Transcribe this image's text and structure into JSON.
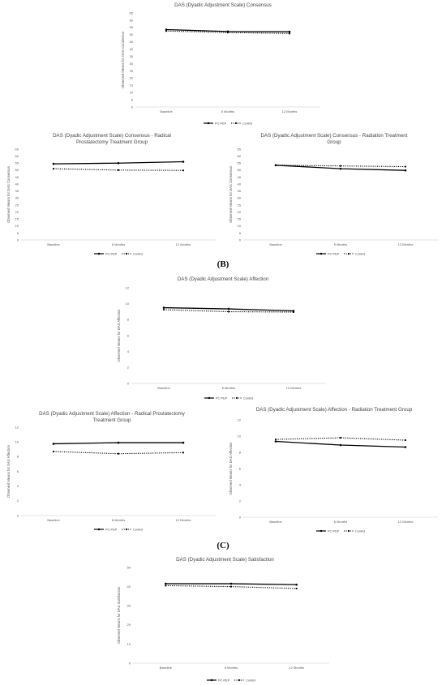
{
  "section_labels": [
    "(B)",
    "(C)"
  ],
  "legend": {
    "series": [
      "PC-PEP",
      "Control"
    ]
  },
  "chart_data": [
    {
      "type": "line",
      "title": "DAS (Dyadic Adjustment Scale) Consensus",
      "ylabel": "Observed Means for DAS Consensus",
      "xlabel": "",
      "categories": [
        "Baseline",
        "6 Months",
        "12 Months"
      ],
      "ylim": [
        0,
        65
      ],
      "yticks": [
        0,
        5,
        10,
        15,
        20,
        25,
        30,
        35,
        40,
        45,
        50,
        55,
        60,
        65
      ],
      "grid": false,
      "legend_position": "bottom",
      "series": [
        {
          "name": "PC-PEP",
          "style": "solid",
          "values": [
            53.5,
            52.2,
            52.0
          ]
        },
        {
          "name": "Control",
          "style": "dotted",
          "values": [
            52.5,
            51.5,
            50.8
          ]
        }
      ]
    },
    {
      "type": "line",
      "title": "DAS (Dyadic Adjustment Scale) Consensus - Radical Prostatectomy Treatment Group",
      "ylabel": "Observed Means for DAS Consensus",
      "xlabel": "",
      "categories": [
        "Baseline",
        "6 Months",
        "12 Months"
      ],
      "ylim": [
        0,
        65
      ],
      "yticks": [
        0,
        5,
        10,
        15,
        20,
        25,
        30,
        35,
        40,
        45,
        50,
        55,
        60,
        65
      ],
      "grid": false,
      "legend_position": "bottom",
      "series": [
        {
          "name": "PC-PEP",
          "style": "solid",
          "values": [
            54.5,
            55.0,
            56.0
          ]
        },
        {
          "name": "Control",
          "style": "dotted",
          "values": [
            51.0,
            50.0,
            49.8
          ]
        }
      ]
    },
    {
      "type": "line",
      "title": "DAS (Dyadic Adjustment Scale) Consensus - Radiation Treatment Group",
      "ylabel": "Observed Means for DAS Consensus",
      "xlabel": "",
      "categories": [
        "Baseline",
        "6 Months",
        "12 Months"
      ],
      "ylim": [
        0,
        65
      ],
      "yticks": [
        0,
        5,
        10,
        15,
        20,
        25,
        30,
        35,
        40,
        45,
        50,
        55,
        60,
        65
      ],
      "grid": false,
      "legend_position": "bottom",
      "series": [
        {
          "name": "PC-PEP",
          "style": "solid",
          "values": [
            53.5,
            51.0,
            49.8
          ]
        },
        {
          "name": "Control",
          "style": "dotted",
          "values": [
            53.5,
            53.0,
            52.5
          ]
        }
      ]
    },
    {
      "type": "line",
      "title": "DAS (Dyadic Adjustment Scale) Affection",
      "ylabel": "Observed Means for DAS Affection",
      "xlabel": "",
      "categories": [
        "Baseline",
        "6 Months",
        "12 Months"
      ],
      "ylim": [
        0,
        12
      ],
      "yticks": [
        0,
        2,
        4,
        6,
        8,
        10,
        12
      ],
      "grid": false,
      "legend_position": "bottom",
      "series": [
        {
          "name": "PC-PEP",
          "style": "solid",
          "values": [
            9.5,
            9.35,
            9.1
          ]
        },
        {
          "name": "Control",
          "style": "dotted",
          "values": [
            9.25,
            9.0,
            8.95
          ]
        }
      ]
    },
    {
      "type": "line",
      "title": "DAS (Dyadic Adjustment Scale) Affection - Radical Prostatectomy Treatment Group",
      "ylabel": "Observed Means for DAS Affection",
      "xlabel": "",
      "categories": [
        "Baseline",
        "6 Months",
        "12 Months"
      ],
      "ylim": [
        0,
        12
      ],
      "yticks": [
        0,
        2,
        4,
        6,
        8,
        10,
        12
      ],
      "grid": false,
      "legend_position": "bottom",
      "series": [
        {
          "name": "PC-PEP",
          "style": "solid",
          "values": [
            9.75,
            9.9,
            9.9
          ]
        },
        {
          "name": "Control",
          "style": "dotted",
          "values": [
            8.7,
            8.4,
            8.55
          ]
        }
      ]
    },
    {
      "type": "line",
      "title": "DAS (Dyadic Adjustment Scale) Affection - Radiation Treatment Group",
      "ylabel": "Observed Means for DAS Affection",
      "xlabel": "",
      "categories": [
        "Baseline",
        "6 Months",
        "12 Months"
      ],
      "ylim": [
        0,
        12
      ],
      "yticks": [
        0,
        2,
        4,
        6,
        8,
        10,
        12
      ],
      "grid": false,
      "legend_position": "bottom",
      "series": [
        {
          "name": "PC-PEP",
          "style": "solid",
          "values": [
            9.35,
            8.9,
            8.65
          ]
        },
        {
          "name": "Control",
          "style": "dotted",
          "values": [
            9.6,
            9.8,
            9.5
          ]
        }
      ]
    },
    {
      "type": "line",
      "title": "DAS (Dyadic Adjustment Scale) Satisfaction",
      "ylabel": "Observed Means for DAS Satisfaction",
      "xlabel": "",
      "categories": [
        "Baseline",
        "6 Months",
        "12 Months"
      ],
      "ylim": [
        0,
        50
      ],
      "yticks": [
        0,
        10,
        20,
        30,
        40,
        50
      ],
      "grid": false,
      "legend_position": "bottom",
      "series": [
        {
          "name": "PC-PEP",
          "style": "solid",
          "values": [
            41.5,
            41.5,
            41.0
          ]
        },
        {
          "name": "Control",
          "style": "dotted",
          "values": [
            40.5,
            40.0,
            39.0
          ]
        }
      ]
    }
  ]
}
